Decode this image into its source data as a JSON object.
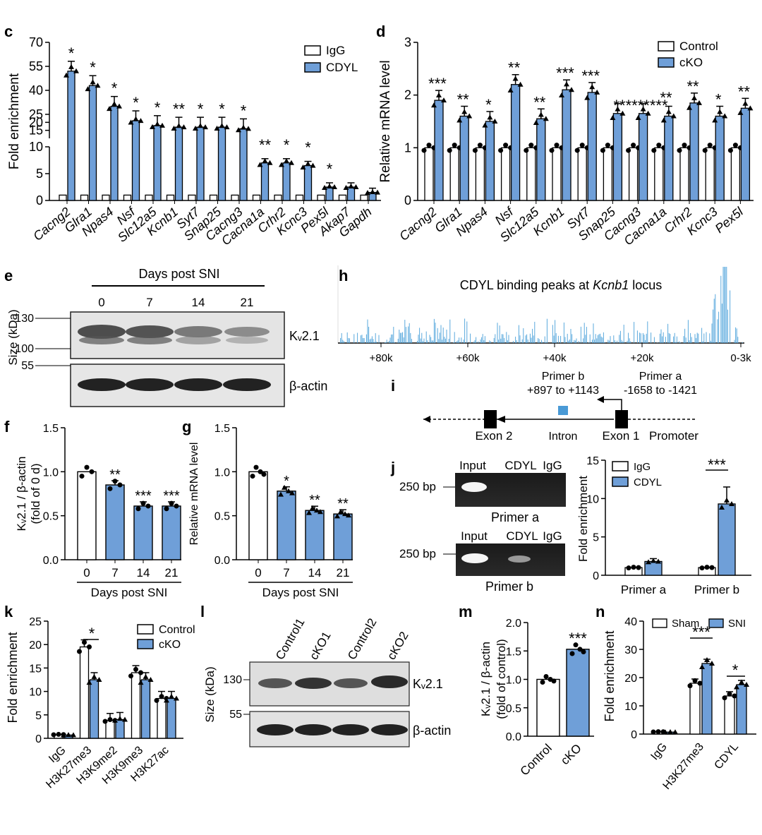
{
  "colors": {
    "blue": "#6f9fd8",
    "blue_dark": "#5a8ac8",
    "white": "#ffffff",
    "black": "#000000",
    "peaks": "#5aa9dd"
  },
  "panels": {
    "c": "c",
    "d": "d",
    "e": "e",
    "f": "f",
    "g": "g",
    "h": "h",
    "i": "i",
    "j": "j",
    "k": "k",
    "l": "l",
    "m": "m",
    "n": "n"
  },
  "chart_data": [
    {
      "panel": "c",
      "type": "bar",
      "ylabel": "Fold enrichment",
      "ytick_labels": [
        "0",
        "5",
        "10",
        "15",
        "20",
        "25",
        "40",
        "55",
        "70"
      ],
      "broken_axis": true,
      "categories": [
        "Cacng2",
        "Glra1",
        "Npas4",
        "Nsf",
        "Slc12a5",
        "Kcnb1",
        "Syt7",
        "Snap25",
        "Cacng3",
        "Cacna1a",
        "Crhr2",
        "Kcnc3",
        "Pex5l",
        "Akap7",
        "Gapdh"
      ],
      "series": [
        {
          "name": "IgG",
          "values": [
            1,
            1,
            1,
            1,
            1,
            1,
            1,
            1,
            1,
            1,
            1,
            1,
            1,
            1,
            1
          ]
        },
        {
          "name": "CDYL",
          "values": [
            52,
            43,
            30,
            21,
            18,
            17,
            17,
            17,
            16,
            7,
            7,
            6.5,
            2.5,
            2.5,
            1.5
          ]
        }
      ],
      "significance": [
        "*",
        "*",
        "*",
        "*",
        "*",
        "**",
        "*",
        "*",
        "*",
        "**",
        "*",
        "*",
        "*",
        "",
        ""
      ]
    },
    {
      "panel": "d",
      "type": "bar",
      "ylabel": "Relative mRNA  level",
      "ylim": [
        0,
        3
      ],
      "ytick_labels": [
        "0",
        "1",
        "2",
        "3"
      ],
      "categories": [
        "Cacng2",
        "Glra1",
        "Npas4",
        "Nsf",
        "Slc12a5",
        "Kcnb1",
        "Syt7",
        "Snap25",
        "Cacng3",
        "Cacna1a",
        "Crhr2",
        "Kcnc3",
        "Pex5l"
      ],
      "series": [
        {
          "name": "Control",
          "values": [
            1,
            1,
            1,
            1,
            1,
            1,
            1,
            1,
            1,
            1,
            1,
            1,
            1
          ]
        },
        {
          "name": "cKO",
          "values": [
            1.9,
            1.6,
            1.5,
            2.2,
            1.55,
            2.1,
            2.05,
            1.65,
            1.65,
            1.6,
            1.85,
            1.6,
            1.75
          ]
        }
      ],
      "significance": [
        "***",
        "**",
        "*",
        "**",
        "**",
        "***",
        "***",
        "**",
        "**",
        "**",
        "**",
        "*",
        "**"
      ],
      "sig_block": "*********"
    },
    {
      "panel": "f",
      "type": "bar",
      "ylabel": "Kᵥ2.1 / β-actin",
      "ylabel2": "(fold of 0 d)",
      "xlabel": "Days post SNI",
      "ylim": [
        0,
        1.5
      ],
      "ytick_labels": [
        "0.0",
        "0.5",
        "1.0",
        "1.5"
      ],
      "categories": [
        "0",
        "7",
        "14",
        "21"
      ],
      "values": [
        1.0,
        0.85,
        0.61,
        0.61
      ],
      "significance": [
        "",
        "**",
        "***",
        "***"
      ]
    },
    {
      "panel": "g",
      "type": "bar",
      "ylabel": "Relative mRNA level",
      "xlabel": "Days post SNI",
      "ylim": [
        0,
        1.5
      ],
      "ytick_labels": [
        "0.0",
        "0.5",
        "1.0",
        "1.5"
      ],
      "categories": [
        "0",
        "7",
        "14",
        "21"
      ],
      "values": [
        1.0,
        0.78,
        0.56,
        0.52
      ],
      "significance": [
        "",
        "*",
        "**",
        "**"
      ]
    },
    {
      "panel": "h",
      "type": "bar",
      "title": "CDYL binding peaks at ",
      "title_italic": "Kcnb1",
      "title_end": " locus",
      "tick_labels": [
        "+80k",
        "+60k",
        "+40k",
        "+20k",
        "0-3k"
      ]
    },
    {
      "panel": "j",
      "type": "bar",
      "ylabel": "Fold enrichment",
      "ylim": [
        0,
        15
      ],
      "ytick_labels": [
        "0",
        "5",
        "10",
        "15"
      ],
      "categories": [
        "Primer a",
        "Primer b"
      ],
      "series": [
        {
          "name": "IgG",
          "values": [
            1,
            1
          ]
        },
        {
          "name": "CDYL",
          "values": [
            1.8,
            9.3
          ]
        }
      ],
      "significance": [
        "",
        "***"
      ]
    },
    {
      "panel": "k",
      "type": "bar",
      "ylabel": "Fold enrichment",
      "ylim": [
        0,
        25
      ],
      "ytick_labels": [
        "0",
        "5",
        "10",
        "15",
        "20",
        "25"
      ],
      "categories": [
        "IgG",
        "H3K27me3",
        "H3K9me2",
        "H3K9me3",
        "H3K27ac"
      ],
      "series": [
        {
          "name": "Control",
          "values": [
            0.8,
            19.5,
            3.8,
            14,
            8.5
          ]
        },
        {
          "name": "cKO",
          "values": [
            0.7,
            12.5,
            4,
            12.5,
            8.5
          ]
        }
      ],
      "significance": [
        "",
        "*",
        "",
        "",
        ""
      ]
    },
    {
      "panel": "m",
      "type": "bar",
      "ylabel": "Kᵥ2.1 / β-actin",
      "ylabel2": "(fold of control)",
      "ylim": [
        0,
        2
      ],
      "ytick_labels": [
        "0.0",
        "0.5",
        "1.0",
        "1.5",
        "2.0"
      ],
      "categories": [
        "Control",
        "cKO"
      ],
      "values": [
        1.0,
        1.53
      ],
      "significance": [
        "",
        "***"
      ]
    },
    {
      "panel": "n",
      "type": "bar",
      "ylabel": "Fold enrichment",
      "ylim": [
        0,
        40
      ],
      "ytick_labels": [
        "0",
        "10",
        "20",
        "30",
        "40"
      ],
      "categories": [
        "IgG",
        "H3K27me3",
        "CDYL"
      ],
      "series": [
        {
          "name": "Sham",
          "values": [
            0.8,
            18,
            13.5
          ]
        },
        {
          "name": "SNI",
          "values": [
            0.7,
            25,
            17.5
          ]
        }
      ],
      "significance": [
        "",
        "***",
        "*"
      ]
    }
  ],
  "blot_e": {
    "header": "Days post SNI",
    "lanes": [
      "0",
      "7",
      "14",
      "21"
    ],
    "size_label": "Size (kDa)",
    "markers": [
      "130",
      "100",
      "55"
    ],
    "band1": "Kᵥ2.1",
    "band2": "β-actin"
  },
  "diagram_i": {
    "primer_b": "Primer b",
    "primer_b_range": "+897 to +1143",
    "primer_a": "Primer a",
    "primer_a_range": "-1658 to -1421",
    "exon2": "Exon 2",
    "intron": "Intron",
    "exon1": "Exon 1",
    "promoter": "Promoter"
  },
  "gel_j": {
    "lanes": [
      "Input",
      "CDYL",
      "IgG"
    ],
    "marker": "250 bp",
    "caption_a": "Primer a",
    "caption_b": "Primer b"
  },
  "blot_l": {
    "lanes": [
      "Control1",
      "cKO1",
      "Control2",
      "cKO2"
    ],
    "size_label": "Size (kDa)",
    "markers": [
      "130",
      "55"
    ],
    "band1": "Kᵥ2.1",
    "band2": "β-actin"
  }
}
